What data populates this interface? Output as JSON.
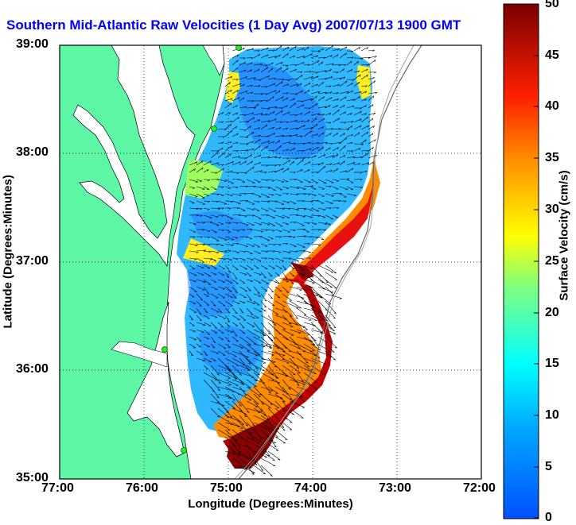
{
  "title": "Southern Mid-Atlantic Raw Velocities (1 Day Avg) 2007/07/13 1900 GMT",
  "axes": {
    "xlabel": "Longitude (Degrees:Minutes)",
    "ylabel": "Latitude (Degrees:Minutes)",
    "xticks": [
      "77:00",
      "76:00",
      "75:00",
      "74:00",
      "73:00",
      "72:00"
    ],
    "yticks": [
      "39:00",
      "38:00",
      "37:00",
      "36:00",
      "35:00"
    ]
  },
  "colorbar": {
    "label": "Surface Velocity (cm/s)",
    "ticks": [
      "50",
      "45",
      "40",
      "35",
      "30",
      "25",
      "20",
      "15",
      "10",
      "5",
      "0"
    ],
    "range": [
      0,
      50
    ]
  },
  "colors": {
    "land": "#5ef7a6",
    "title": "#0000ff",
    "low": "#1e6cff",
    "high": "#7a0000",
    "station": "#22ee22"
  },
  "map": {
    "lon_range": [
      -77,
      -72
    ],
    "lat_range": [
      35,
      39
    ]
  }
}
